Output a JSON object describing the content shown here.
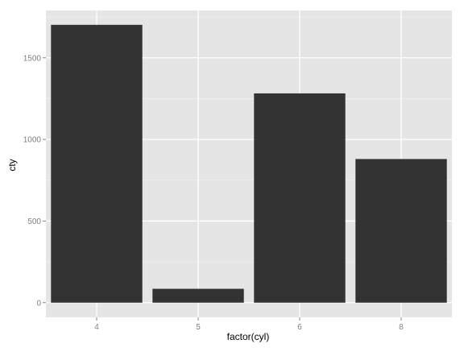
{
  "chart_data": {
    "type": "bar",
    "categories": [
      "4",
      "5",
      "6",
      "8"
    ],
    "values": [
      1702,
      85,
      1282,
      880
    ],
    "xlabel": "factor(cyl)",
    "ylabel": "cty",
    "ylim": [
      -90,
      1790
    ],
    "y_ticks": [
      0,
      500,
      1000,
      1500
    ],
    "y_tick_labels": [
      "0",
      "500",
      "1000",
      "1500"
    ],
    "grid": true,
    "legend": "none",
    "colors": {
      "panel": "#e5e5e5",
      "grid_major": "#ffffff",
      "grid_minor": "#f2f2f2",
      "bar": "#333333",
      "tick_text": "#7f7f7f",
      "axis_title": "#000000"
    }
  }
}
